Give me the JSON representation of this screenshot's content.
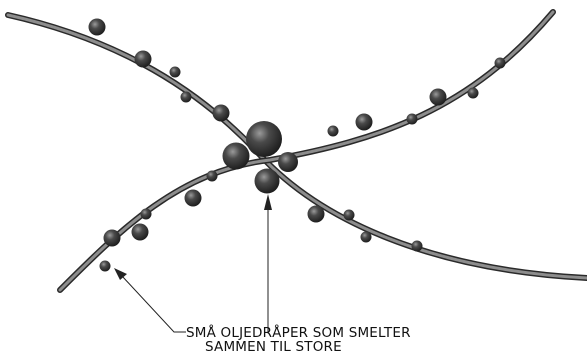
{
  "annotation": {
    "line1": "SMÅ OLJEDRÅPER SOM SMELTER",
    "line2": "SAMMEN TIL STORE"
  },
  "colors": {
    "fiber_outline": "#2a2a2a",
    "fiber_fill": "#8d8d8d",
    "droplet_dark": "#1c1c1c",
    "droplet_mid": "#4a4a4a",
    "droplet_highlight": "#9a9a9a",
    "arrow": "#222222"
  }
}
